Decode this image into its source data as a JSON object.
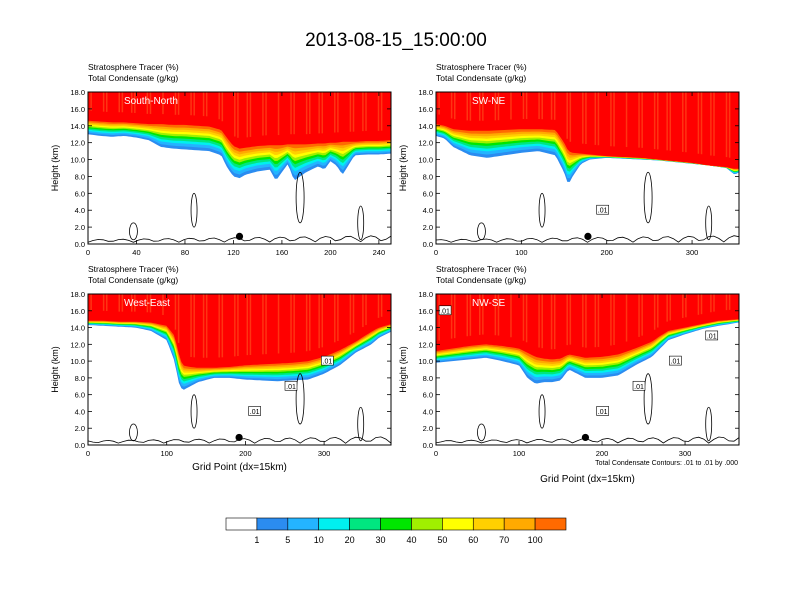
{
  "title": "2013-08-15_15:00:00",
  "chart_data": [
    {
      "type": "heatmap",
      "section": "South-North",
      "subtitle_line1": "Stratosphere Tracer   (%)",
      "subtitle_line2": "Total Condensate   (g/kg)",
      "ylabel": "Height (km)",
      "xlabel": "",
      "xlim": [
        0,
        250
      ],
      "ylim": [
        0,
        18
      ],
      "x_ticks": [
        "0",
        "40",
        "80",
        "120",
        "160",
        "200",
        "240"
      ],
      "y_ticks": [
        "0.0",
        "2.0",
        "4.0",
        "6.0",
        "8.0",
        "10.0",
        "12.0",
        "14.0",
        "16.0",
        "18.0"
      ],
      "contour_labels": [],
      "marker_x": 125,
      "x": [
        0,
        10,
        20,
        30,
        40,
        50,
        60,
        70,
        80,
        90,
        100,
        110,
        115,
        120,
        125,
        130,
        140,
        150,
        155,
        160,
        165,
        170,
        180,
        190,
        195,
        200,
        205,
        210,
        220,
        230,
        240,
        250
      ],
      "tracer_base_km": [
        13.0,
        12.8,
        12.7,
        12.8,
        12.6,
        12.3,
        11.5,
        11.3,
        11.2,
        11.1,
        11.0,
        10.5,
        9.0,
        8.0,
        7.8,
        8.2,
        8.6,
        8.8,
        7.5,
        8.5,
        9.5,
        7.5,
        8.5,
        9.2,
        8.8,
        9.8,
        9.3,
        8.2,
        10.5,
        10.6,
        10.6,
        10.7
      ],
      "red_base_km": [
        14.6,
        14.5,
        14.4,
        14.4,
        14.3,
        14.2,
        14.2,
        14.1,
        14.1,
        14.0,
        13.9,
        13.5,
        12.5,
        11.6,
        11.3,
        11.4,
        11.6,
        11.7,
        11.7,
        11.7,
        11.8,
        11.8,
        11.8,
        11.9,
        11.9,
        12.0,
        12.0,
        12.1,
        12.1,
        12.2,
        12.2,
        12.3
      ]
    },
    {
      "type": "heatmap",
      "section": "SW-NE",
      "subtitle_line1": "Stratosphere Tracer   (%)",
      "subtitle_line2": "Total Condensate   (g/kg)",
      "ylabel": "Height (km)",
      "xlabel": "",
      "xlim": [
        0,
        355
      ],
      "ylim": [
        0,
        18
      ],
      "x_ticks": [
        "0",
        "100",
        "200",
        "300"
      ],
      "y_ticks": [
        "0.0",
        "2.0",
        "4.0",
        "6.0",
        "8.0",
        "10.0",
        "12.0",
        "14.0",
        "16.0",
        "18.0"
      ],
      "contour_labels": [
        ".01"
      ],
      "marker_x": 178,
      "x": [
        0,
        10,
        20,
        40,
        60,
        80,
        100,
        120,
        140,
        150,
        155,
        160,
        170,
        180,
        200,
        220,
        240,
        260,
        280,
        300,
        320,
        340,
        350,
        355
      ],
      "tracer_base_km": [
        12.8,
        12.5,
        11.5,
        10.5,
        10.2,
        10.5,
        10.8,
        11.0,
        10.5,
        8.5,
        7.0,
        8.0,
        9.5,
        10.0,
        10.2,
        10.1,
        10.0,
        9.9,
        9.7,
        9.5,
        9.3,
        9.0,
        8.2,
        8.5
      ],
      "red_base_km": [
        14.2,
        14.0,
        13.6,
        13.4,
        13.4,
        13.5,
        13.6,
        13.6,
        13.5,
        12.0,
        11.0,
        10.8,
        10.7,
        10.6,
        10.4,
        10.3,
        10.2,
        10.0,
        9.8,
        9.6,
        9.3,
        9.1,
        8.9,
        8.9
      ]
    },
    {
      "type": "heatmap",
      "section": "West-East",
      "subtitle_line1": "Stratosphere Tracer   (%)",
      "subtitle_line2": "Total Condensate   (g/kg)",
      "ylabel": "Height (km)",
      "xlabel": "Grid Point (dx=15km)",
      "xlim": [
        0,
        385
      ],
      "ylim": [
        0,
        18
      ],
      "x_ticks": [
        "0",
        "100",
        "200",
        "300"
      ],
      "y_ticks": [
        "0.0",
        "2.0",
        "4.0",
        "6.0",
        "8.0",
        "10.0",
        "12.0",
        "14.0",
        "16.0",
        "18.0"
      ],
      "contour_labels": [
        ".01",
        ".01",
        ".01"
      ],
      "marker_x": 192,
      "x": [
        0,
        20,
        40,
        60,
        80,
        100,
        110,
        115,
        120,
        130,
        140,
        160,
        180,
        200,
        220,
        240,
        260,
        280,
        300,
        320,
        340,
        360,
        370,
        385
      ],
      "tracer_base_km": [
        14.3,
        14.2,
        14.1,
        14.0,
        13.6,
        12.5,
        10.0,
        7.5,
        6.5,
        7.0,
        7.5,
        8.0,
        8.0,
        7.8,
        7.7,
        7.6,
        7.7,
        7.8,
        8.5,
        9.5,
        11.0,
        12.0,
        12.8,
        13.5
      ],
      "red_base_km": [
        14.8,
        14.8,
        14.7,
        14.7,
        14.6,
        14.2,
        13.0,
        11.0,
        9.5,
        9.3,
        9.2,
        9.2,
        9.3,
        9.5,
        9.6,
        9.7,
        9.8,
        10.0,
        10.5,
        11.3,
        12.3,
        13.5,
        14.0,
        14.4
      ]
    },
    {
      "type": "heatmap",
      "section": "NW-SE",
      "subtitle_line1": "Stratosphere Tracer   (%)",
      "subtitle_line2": "Total Condensate   (g/kg)",
      "ylabel": "Height (km)",
      "xlabel": "Grid Point (dx=15km)",
      "xlim": [
        0,
        365
      ],
      "ylim": [
        0,
        18
      ],
      "x_ticks": [
        "0",
        "100",
        "200",
        "300"
      ],
      "y_ticks": [
        "0.0",
        "2.0",
        "4.0",
        "6.0",
        "8.0",
        "10.0",
        "12.0",
        "14.0",
        "16.0",
        "18.0"
      ],
      "contour_labels": [
        ".01",
        ".01",
        ".01",
        ".01",
        ".01"
      ],
      "marker_x": 180,
      "x": [
        0,
        20,
        40,
        60,
        80,
        100,
        110,
        120,
        130,
        140,
        150,
        160,
        170,
        180,
        200,
        220,
        240,
        260,
        270,
        280,
        300,
        320,
        340,
        365
      ],
      "tracer_base_km": [
        9.8,
        10.0,
        10.2,
        10.4,
        10.0,
        9.5,
        8.0,
        7.3,
        7.5,
        7.5,
        7.7,
        9.0,
        8.5,
        8.0,
        8.0,
        8.3,
        9.5,
        10.5,
        11.5,
        12.5,
        13.2,
        13.8,
        14.2,
        14.6
      ],
      "red_base_km": [
        11.2,
        11.5,
        11.8,
        12.0,
        11.8,
        11.5,
        11.0,
        10.5,
        10.3,
        10.2,
        10.3,
        10.8,
        10.6,
        10.4,
        10.5,
        10.8,
        11.5,
        12.3,
        13.0,
        13.6,
        14.0,
        14.4,
        14.8,
        15.0
      ]
    }
  ],
  "footnote": "Total Condensate Contours: .01 to .01 by .000",
  "colorbar": {
    "labels": [
      "1",
      "5",
      "10",
      "20",
      "30",
      "40",
      "50",
      "60",
      "70",
      "100"
    ],
    "colors": [
      "#ffffff",
      "#2b8cf0",
      "#24b4ff",
      "#00f0f0",
      "#00e680",
      "#00e600",
      "#a0f000",
      "#ffff00",
      "#ffd000",
      "#ffaa00",
      "#ff6a00",
      "#ff0000"
    ]
  }
}
